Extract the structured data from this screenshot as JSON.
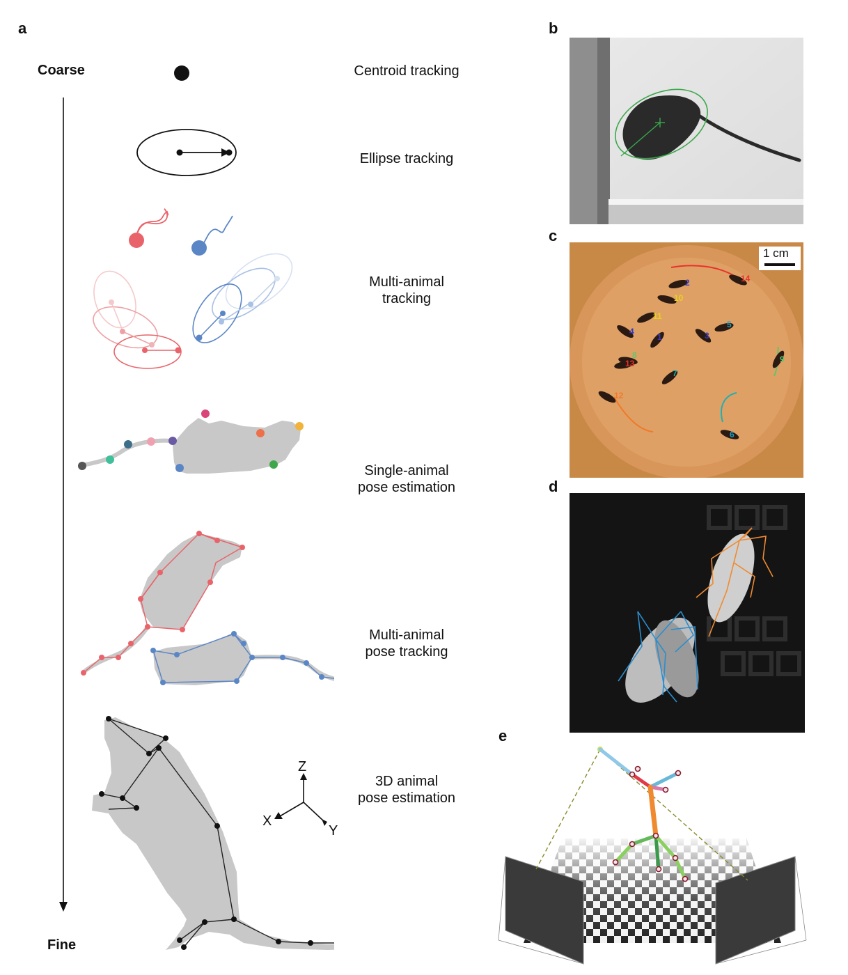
{
  "panel_letters": {
    "a": "a",
    "b": "b",
    "c": "c",
    "d": "d",
    "e": "e"
  },
  "axis": {
    "coarse": "Coarse",
    "fine": "Fine"
  },
  "stages": {
    "centroid": "Centroid tracking",
    "ellipse": "Ellipse tracking",
    "multi_tracking_line1": "Multi-animal",
    "multi_tracking_line2": "tracking",
    "single_pose_line1": "Single-animal",
    "single_pose_line2": "pose estimation",
    "multi_pose_line1": "Multi-animal",
    "multi_pose_line2": "pose tracking",
    "pose3d_line1": "3D animal",
    "pose3d_line2": "pose estimation"
  },
  "axes3d": {
    "z": "Z",
    "x": "X",
    "y": "Y"
  },
  "panel_c": {
    "scale_bar": "1 cm",
    "ids": [
      "2",
      "14",
      "10",
      "11",
      "4",
      "1",
      "3",
      "5",
      "8",
      "13",
      "7",
      "9",
      "12",
      "6"
    ]
  },
  "colors": {
    "red": "#e8646a",
    "blue": "#5b86c6",
    "gray_body": "#c8c8c8",
    "ellipse_green": "#3aa84a",
    "fly_orange": "#f08a30",
    "fly_blue": "#2a8ed0",
    "arena": "#d9965a"
  }
}
